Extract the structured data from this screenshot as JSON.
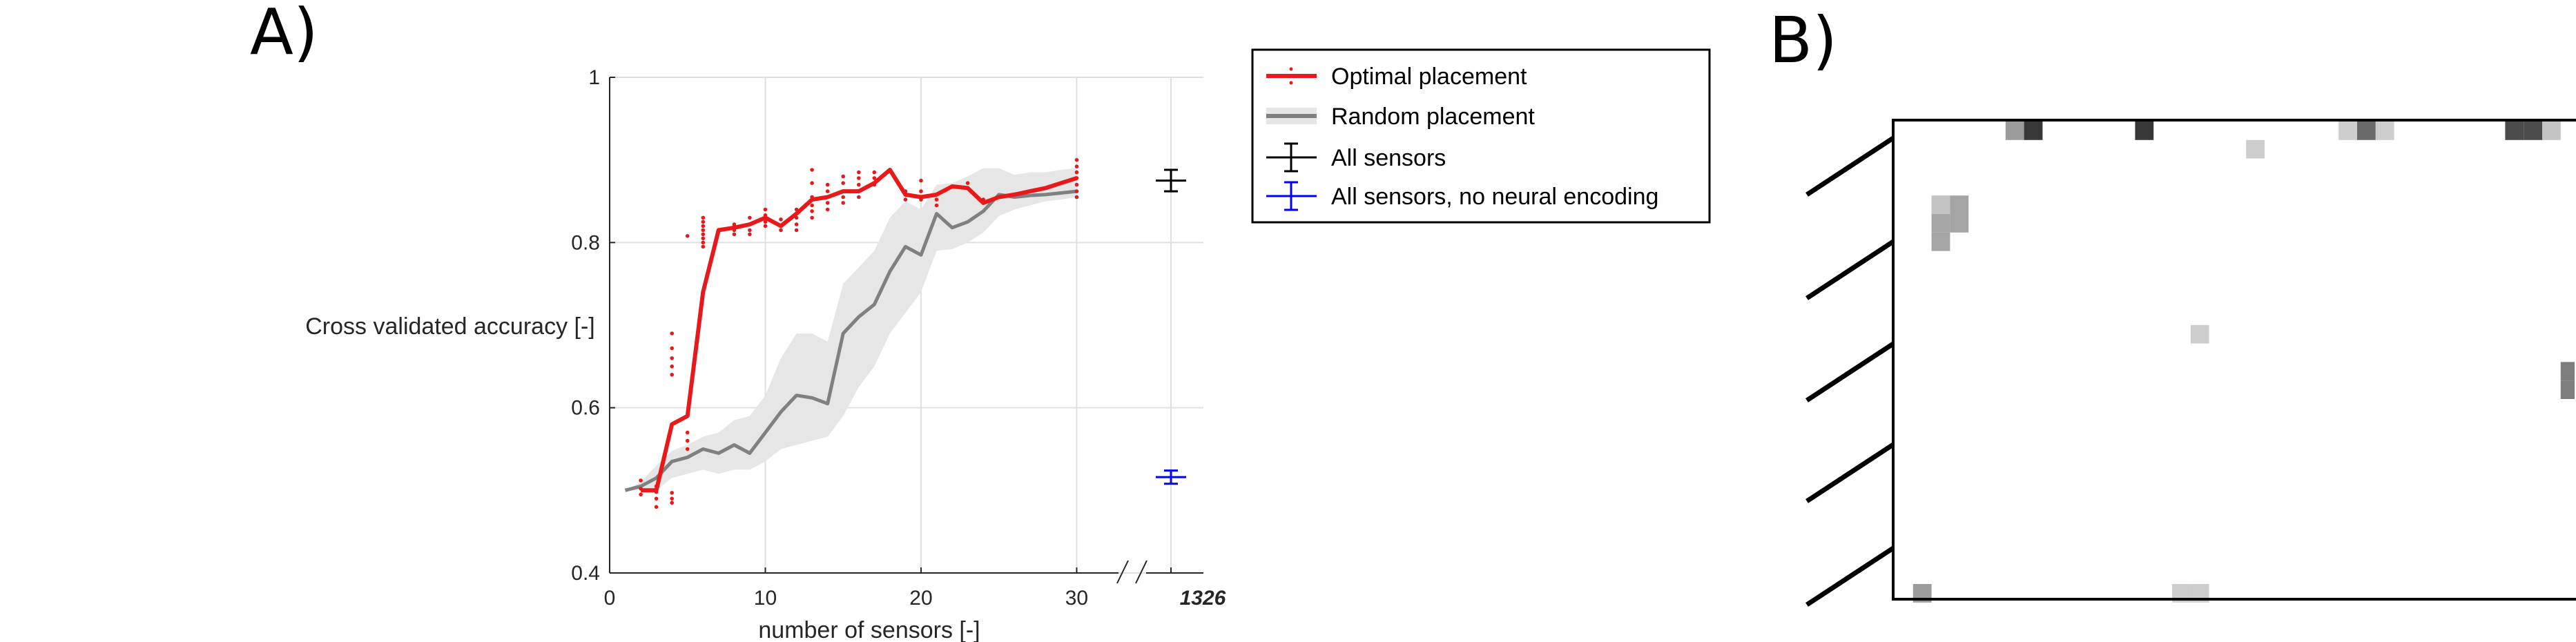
{
  "panel_labels": {
    "a": "A)",
    "b": "B)"
  },
  "chart_data": [
    {
      "type": "line",
      "xlabel": "number of sensors [-]",
      "ylabel": "Cross validated accuracy [-]",
      "xlim": [
        0,
        31
      ],
      "ylim": [
        0.4,
        1
      ],
      "xticks": [
        0,
        10,
        20,
        30
      ],
      "yticks": [
        0.4,
        0.6,
        0.8,
        1
      ],
      "ytick_labels": [
        "0.4",
        "0.6",
        "0.8",
        "1"
      ],
      "xtick_labels": [
        "0",
        "10",
        "20",
        "30"
      ],
      "broken_axis_label": "1326",
      "grid": true,
      "legend_position": "top-right, outside",
      "series": [
        {
          "name": "Optimal placement",
          "color": "#e8191b",
          "x": [
            2,
            3,
            4,
            5,
            6,
            7,
            8,
            9,
            10,
            11,
            12,
            13,
            14,
            15,
            16,
            17,
            18,
            19,
            20,
            21,
            22,
            23,
            24,
            25,
            26,
            27,
            28,
            29,
            30
          ],
          "y": [
            0.5,
            0.5,
            0.58,
            0.59,
            0.74,
            0.815,
            0.818,
            0.822,
            0.83,
            0.82,
            0.835,
            0.852,
            0.855,
            0.862,
            0.862,
            0.872,
            0.888,
            0.858,
            0.855,
            0.858,
            0.868,
            0.866,
            0.848,
            0.855,
            0.858,
            0.862,
            0.866,
            0.872,
            0.878
          ],
          "scatter_points": [
            [
              2,
              0.512
            ],
            [
              2,
              0.502
            ],
            [
              2,
              0.495
            ],
            [
              3,
              0.505
            ],
            [
              3,
              0.498
            ],
            [
              3,
              0.49
            ],
            [
              3,
              0.48
            ],
            [
              4,
              0.497
            ],
            [
              4,
              0.49
            ],
            [
              4,
              0.485
            ],
            [
              4,
              0.64
            ],
            [
              4,
              0.65
            ],
            [
              4,
              0.66
            ],
            [
              4,
              0.672
            ],
            [
              4,
              0.69
            ],
            [
              5,
              0.57
            ],
            [
              5,
              0.56
            ],
            [
              5,
              0.55
            ],
            [
              5,
              0.808
            ],
            [
              6,
              0.83
            ],
            [
              6,
              0.825
            ],
            [
              6,
              0.82
            ],
            [
              6,
              0.815
            ],
            [
              6,
              0.81
            ],
            [
              6,
              0.805
            ],
            [
              6,
              0.8
            ],
            [
              6,
              0.795
            ],
            [
              8,
              0.822
            ],
            [
              8,
              0.815
            ],
            [
              8,
              0.81
            ],
            [
              9,
              0.83
            ],
            [
              9,
              0.822
            ],
            [
              9,
              0.815
            ],
            [
              9,
              0.81
            ],
            [
              10,
              0.84
            ],
            [
              10,
              0.833
            ],
            [
              10,
              0.825
            ],
            [
              10,
              0.82
            ],
            [
              11,
              0.828
            ],
            [
              11,
              0.82
            ],
            [
              11,
              0.815
            ],
            [
              12,
              0.84
            ],
            [
              12,
              0.83
            ],
            [
              12,
              0.822
            ],
            [
              12,
              0.815
            ],
            [
              13,
              0.872
            ],
            [
              13,
              0.888
            ],
            [
              13,
              0.855
            ],
            [
              13,
              0.845
            ],
            [
              13,
              0.838
            ],
            [
              13,
              0.83
            ],
            [
              14,
              0.87
            ],
            [
              14,
              0.862
            ],
            [
              14,
              0.855
            ],
            [
              14,
              0.848
            ],
            [
              14,
              0.84
            ],
            [
              15,
              0.88
            ],
            [
              15,
              0.872
            ],
            [
              15,
              0.862
            ],
            [
              15,
              0.855
            ],
            [
              15,
              0.848
            ],
            [
              16,
              0.885
            ],
            [
              16,
              0.878
            ],
            [
              16,
              0.87
            ],
            [
              16,
              0.862
            ],
            [
              16,
              0.855
            ],
            [
              17,
              0.885
            ],
            [
              17,
              0.878
            ],
            [
              17,
              0.87
            ],
            [
              19,
              0.862
            ],
            [
              19,
              0.858
            ],
            [
              19,
              0.852
            ],
            [
              20,
              0.875
            ],
            [
              20,
              0.862
            ],
            [
              20,
              0.852
            ],
            [
              21,
              0.852
            ],
            [
              21,
              0.845
            ],
            [
              23,
              0.872
            ],
            [
              23,
              0.866
            ],
            [
              24,
              0.852
            ],
            [
              24,
              0.848
            ],
            [
              30,
              0.9
            ],
            [
              30,
              0.892
            ],
            [
              30,
              0.885
            ],
            [
              30,
              0.878
            ],
            [
              30,
              0.87
            ],
            [
              30,
              0.862
            ],
            [
              30,
              0.855
            ]
          ]
        },
        {
          "name": "Random placement",
          "color": "#808080",
          "band_color": "#e6e6e6",
          "x": [
            1,
            2,
            3,
            4,
            5,
            6,
            7,
            8,
            9,
            10,
            11,
            12,
            13,
            14,
            15,
            16,
            17,
            18,
            19,
            20,
            21,
            22,
            23,
            24,
            25,
            26,
            27,
            28,
            29,
            30
          ],
          "y": [
            0.5,
            0.505,
            0.515,
            0.535,
            0.54,
            0.55,
            0.545,
            0.555,
            0.545,
            0.57,
            0.595,
            0.615,
            0.612,
            0.605,
            0.69,
            0.71,
            0.725,
            0.765,
            0.795,
            0.785,
            0.835,
            0.818,
            0.825,
            0.838,
            0.858,
            0.855,
            0.857,
            0.858,
            0.86,
            0.862
          ],
          "band_low": [
            0.5,
            0.5,
            0.5,
            0.515,
            0.52,
            0.525,
            0.52,
            0.525,
            0.525,
            0.535,
            0.55,
            0.555,
            0.56,
            0.565,
            0.59,
            0.625,
            0.65,
            0.69,
            0.715,
            0.74,
            0.79,
            0.792,
            0.8,
            0.812,
            0.832,
            0.84,
            0.845,
            0.85,
            0.852,
            0.855
          ],
          "band_high": [
            0.5,
            0.51,
            0.53,
            0.548,
            0.555,
            0.565,
            0.57,
            0.585,
            0.59,
            0.615,
            0.66,
            0.69,
            0.69,
            0.68,
            0.75,
            0.77,
            0.79,
            0.83,
            0.85,
            0.84,
            0.87,
            0.872,
            0.88,
            0.89,
            0.89,
            0.882,
            0.885,
            0.885,
            0.888,
            0.89
          ]
        },
        {
          "name": "All sensors",
          "color": "#000000",
          "value": 0.875,
          "err": [
            0.862,
            0.888
          ]
        },
        {
          "name": "All sensors, no neural encoding",
          "color": "#0000ff",
          "value": 0.516,
          "err": [
            0.508,
            0.524
          ]
        }
      ]
    },
    {
      "type": "heatmap",
      "description_note": "",
      "colormap": "grayscale, darker = more frequent",
      "cells": [
        {
          "col": 6,
          "row": 0,
          "v": 0.4
        },
        {
          "col": 7,
          "row": 0,
          "v": 0.9
        },
        {
          "col": 13,
          "row": 0,
          "v": 0.9
        },
        {
          "col": 24,
          "row": 0,
          "v": 0.15
        },
        {
          "col": 25,
          "row": 0,
          "v": 0.65
        },
        {
          "col": 26,
          "row": 0,
          "v": 0.15
        },
        {
          "col": 33,
          "row": 0,
          "v": 0.8
        },
        {
          "col": 34,
          "row": 0,
          "v": 0.8
        },
        {
          "col": 35,
          "row": 0,
          "v": 0.2
        },
        {
          "col": 19,
          "row": 1,
          "v": 0.15
        },
        {
          "col": 2,
          "row": 4,
          "v": 0.2
        },
        {
          "col": 3,
          "row": 4,
          "v": 0.35
        },
        {
          "col": 2,
          "row": 5,
          "v": 0.35
        },
        {
          "col": 3,
          "row": 5,
          "v": 0.35
        },
        {
          "col": 2,
          "row": 6,
          "v": 0.35
        },
        {
          "col": 16,
          "row": 11,
          "v": 0.15
        },
        {
          "col": 36,
          "row": 13,
          "v": 0.55
        },
        {
          "col": 36,
          "row": 14,
          "v": 0.55
        },
        {
          "col": 1,
          "row": 25,
          "v": 0.4
        },
        {
          "col": 15,
          "row": 25,
          "v": 0.15
        },
        {
          "col": 16,
          "row": 25,
          "v": 0.15
        }
      ]
    }
  ],
  "legend": [
    {
      "label": "Optimal placement"
    },
    {
      "label": "Random placement"
    },
    {
      "label": "All sensors"
    },
    {
      "label": "All sensors, no neural encoding"
    }
  ]
}
